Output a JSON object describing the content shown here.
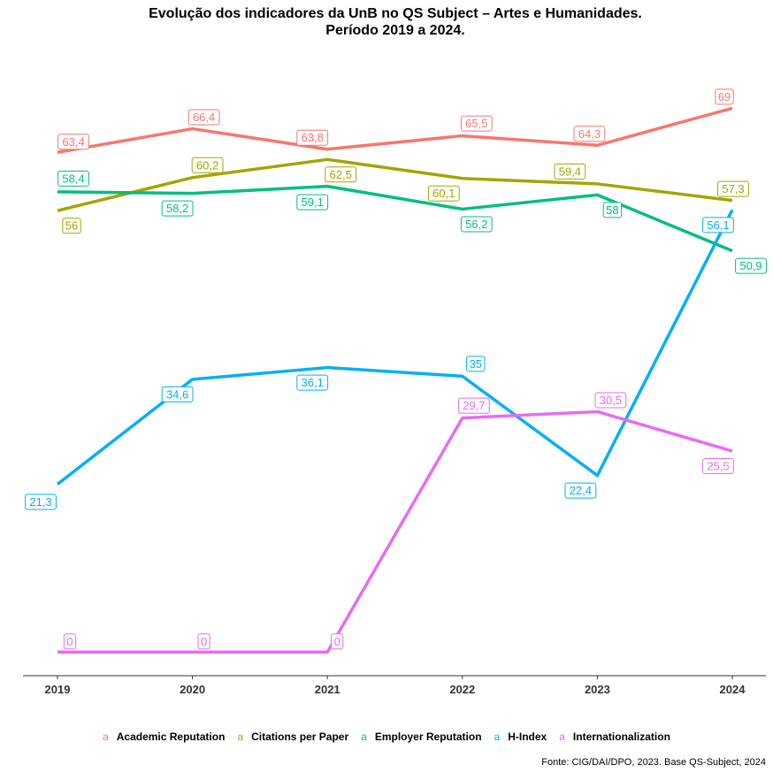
{
  "chart_data": {
    "type": "line",
    "title": "Evolução dos indicadores da UnB no QS Subject – Artes e Humanidades.",
    "subtitle": "Período 2019 a 2024.",
    "x": [
      "2019",
      "2020",
      "2021",
      "2022",
      "2023",
      "2024"
    ],
    "ylim": [
      -3,
      76
    ],
    "grid": false,
    "legend_position": "bottom",
    "legend_key_glyph": "a",
    "caption": "Fonte: CIG/DAI/DPO, 2023. Base QS-Subject, 2024",
    "series": [
      {
        "name": "Academic Reputation",
        "color": "#F8766D",
        "values": [
          63.4,
          66.4,
          63.8,
          65.5,
          64.3,
          69
        ],
        "labels": [
          "63,4",
          "66,4",
          "63,8",
          "65,5",
          "64,3",
          "69"
        ]
      },
      {
        "name": "Citations per Paper",
        "color": "#A3A500",
        "values": [
          56,
          60.2,
          62.5,
          60.1,
          59.4,
          57.3
        ],
        "labels": [
          "56",
          "60,2",
          "62,5",
          "60,1",
          "59,4",
          "57,3"
        ]
      },
      {
        "name": "Employer Reputation",
        "color": "#00BF7D",
        "values": [
          58.4,
          58.2,
          59.1,
          56.2,
          58,
          50.9
        ],
        "labels": [
          "58,4",
          "58,2",
          "59,1",
          "56,2",
          "58",
          "50,9"
        ]
      },
      {
        "name": "H-Index",
        "color": "#00B0F6",
        "values": [
          21.3,
          34.6,
          36.1,
          35,
          22.4,
          56.1
        ],
        "labels": [
          "21,3",
          "34,6",
          "36,1",
          "35",
          "22,4",
          "56,1"
        ]
      },
      {
        "name": "Internationalization",
        "color": "#E76BF3",
        "values": [
          0,
          0,
          0,
          29.7,
          30.5,
          25.5
        ],
        "labels": [
          "0",
          "0",
          "0",
          "29,7",
          "30,5",
          "25,5"
        ]
      }
    ]
  }
}
